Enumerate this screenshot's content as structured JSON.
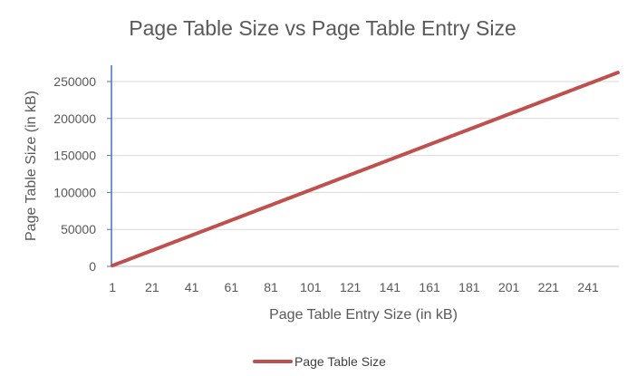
{
  "chart_data": {
    "type": "line",
    "title": "Page Table Size vs Page Table Entry Size",
    "xlabel": "Page Table Entry Size (in kB)",
    "ylabel": "Page Table Size (in kB)",
    "x": {
      "start": 1,
      "end": 256,
      "step": 1
    },
    "x_tick_labels": [
      "1",
      "21",
      "41",
      "61",
      "81",
      "101",
      "121",
      "141",
      "161",
      "181",
      "201",
      "221",
      "241"
    ],
    "ylim": [
      0,
      250000
    ],
    "y_ticks": [
      0,
      50000,
      100000,
      150000,
      200000,
      250000
    ],
    "y_tick_labels": [
      "0",
      "50000",
      "100000",
      "150000",
      "200000",
      "250000"
    ],
    "grid": true,
    "legend_position": "bottom",
    "series": [
      {
        "name": "Page Table Size",
        "color": "#c0504d",
        "formula": "y = 1024 * x",
        "sample_points": [
          [
            1,
            1024
          ],
          [
            21,
            21504
          ],
          [
            41,
            41984
          ],
          [
            61,
            62464
          ],
          [
            81,
            82944
          ],
          [
            101,
            103424
          ],
          [
            121,
            123904
          ],
          [
            141,
            144384
          ],
          [
            161,
            164864
          ],
          [
            181,
            185344
          ],
          [
            201,
            205824
          ],
          [
            221,
            226304
          ],
          [
            241,
            246784
          ],
          [
            256,
            262144
          ]
        ]
      }
    ]
  }
}
